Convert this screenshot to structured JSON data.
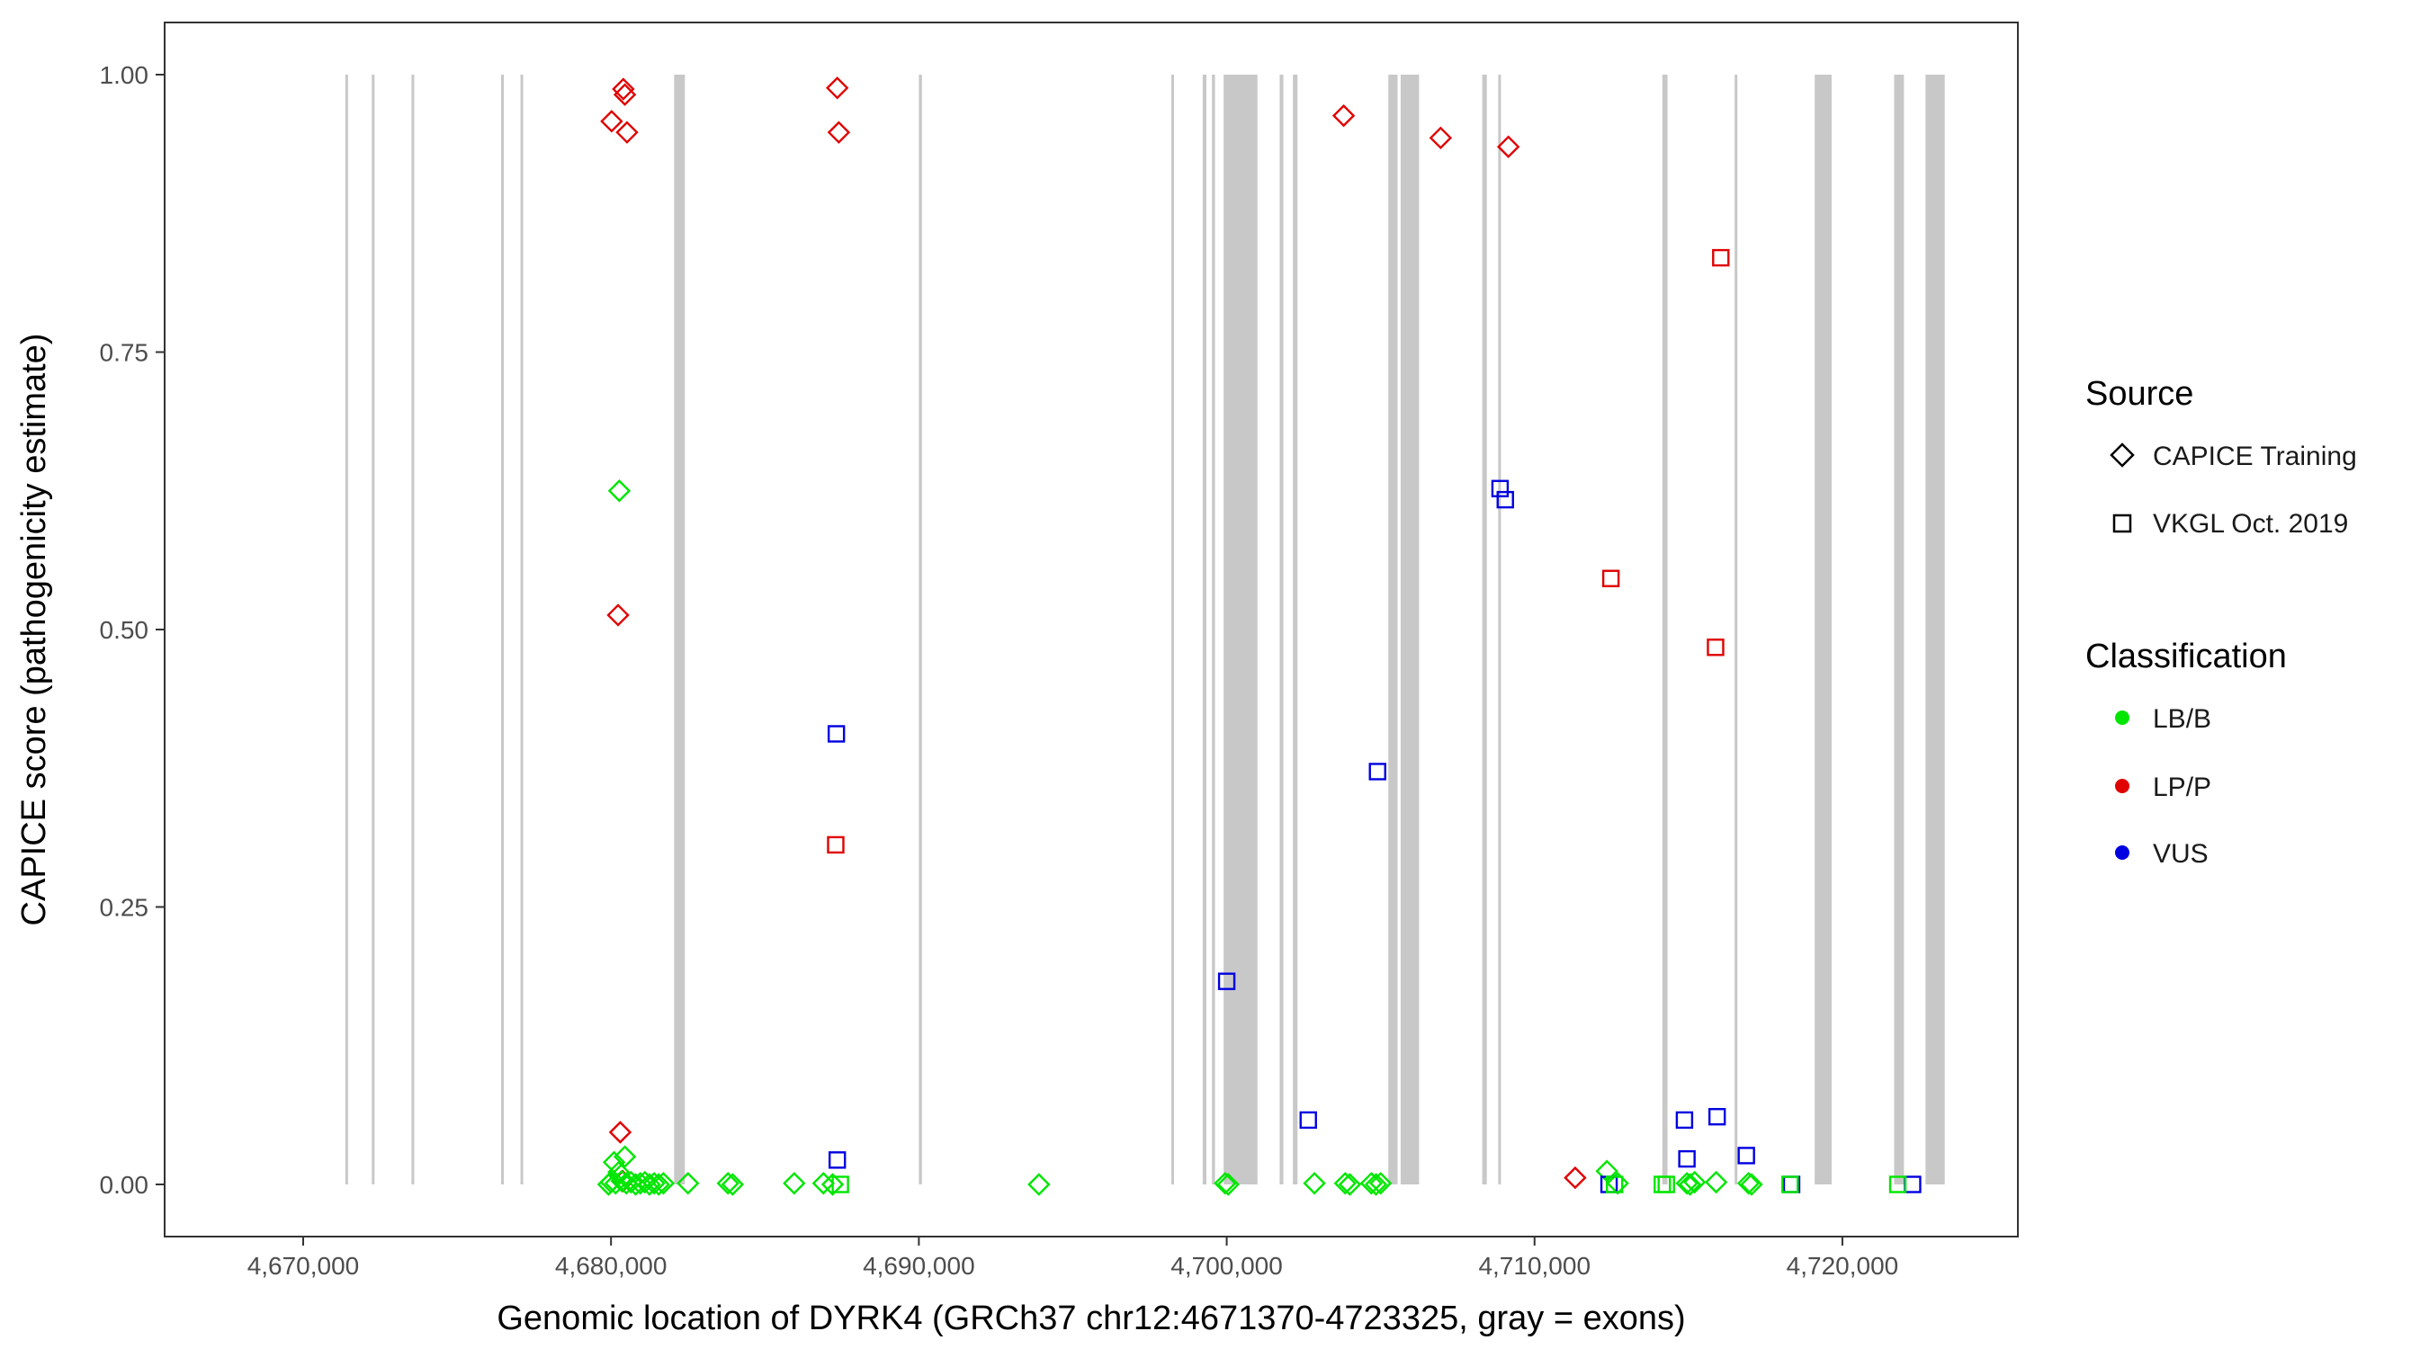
{
  "chart_data": {
    "type": "scatter",
    "title": "",
    "xlabel": "Genomic location of DYRK4 (GRCh37 chr12:4671370-4723325, gray = exons)",
    "ylabel": "CAPICE score (pathogenicity estimate)",
    "xlim": [
      4665500,
      4725700
    ],
    "ylim": [
      -0.047,
      1.047
    ],
    "x_ticks": [
      4670000,
      4680000,
      4690000,
      4700000,
      4710000,
      4720000
    ],
    "x_tick_labels": [
      "4,670,000",
      "4,680,000",
      "4,690,000",
      "4,700,000",
      "4,710,000",
      "4,720,000"
    ],
    "y_ticks": [
      0,
      0.25,
      0.5,
      0.75,
      1.0
    ],
    "y_tick_labels": [
      "0.00",
      "0.25",
      "0.50",
      "0.75",
      "1.00"
    ],
    "grid": false,
    "legend_position": "right",
    "exons": [
      [
        4671370,
        4671450
      ],
      [
        4672230,
        4672300
      ],
      [
        4673520,
        4673600
      ],
      [
        4676430,
        4676510
      ],
      [
        4677060,
        4677140
      ],
      [
        4682050,
        4682400
      ],
      [
        4690000,
        4690100
      ],
      [
        4698200,
        4698280
      ],
      [
        4699220,
        4699340
      ],
      [
        4699520,
        4699620
      ],
      [
        4699900,
        4701000
      ],
      [
        4701720,
        4701840
      ],
      [
        4702150,
        4702300
      ],
      [
        4705250,
        4705550
      ],
      [
        4705650,
        4706250
      ],
      [
        4708300,
        4708450
      ],
      [
        4708820,
        4708900
      ],
      [
        4714150,
        4714320
      ],
      [
        4716500,
        4716580
      ],
      [
        4719100,
        4719650
      ],
      [
        4721680,
        4722000
      ],
      [
        4722700,
        4723325
      ]
    ],
    "legend": {
      "source_title": "Source",
      "source_items": [
        {
          "label": "CAPICE Training",
          "shape": "diamond"
        },
        {
          "label": "VKGL Oct. 2019",
          "shape": "square"
        }
      ],
      "class_title": "Classification",
      "class_items": [
        {
          "label": "LB/B",
          "color": "#00e600"
        },
        {
          "label": "LP/P",
          "color": "#e00000"
        },
        {
          "label": "VUS",
          "color": "#0000e0"
        }
      ]
    },
    "series": [
      {
        "source": "CAPICE Training",
        "classification": "LP/P",
        "x": [
          4680020,
          4680230,
          4680400,
          4680450,
          4680520,
          4680300,
          4687350,
          4687400,
          4703800,
          4706950,
          4709150,
          4711320,
          4680380
        ],
        "y": [
          0.958,
          0.513,
          0.987,
          0.982,
          0.948,
          0.047,
          0.988,
          0.948,
          0.963,
          0.943,
          0.935,
          0.006,
          0.003
        ]
      },
      {
        "source": "CAPICE Training",
        "classification": "LB/B",
        "x": [
          4680270,
          4679920,
          4680000,
          4680150,
          4680350,
          4680500,
          4680650,
          4680800,
          4680950,
          4681100,
          4681250,
          4681400,
          4681550,
          4681700,
          4680450,
          4680100,
          4680250,
          4682500,
          4683800,
          4683950,
          4685950,
          4686900,
          4687200,
          4693900,
          4699950,
          4700050,
          4702850,
          4703850,
          4704000,
          4704700,
          4704850,
          4705000,
          4712350,
          4712700,
          4714950,
          4715050,
          4715200,
          4715900,
          4716950,
          4717050
        ],
        "y": [
          0.625,
          0.0,
          0.002,
          0.001,
          0.003,
          0.001,
          0.002,
          0.0,
          0.001,
          0.002,
          0.0,
          0.001,
          0.0,
          0.001,
          0.025,
          0.02,
          0.011,
          0.001,
          0.001,
          0.0,
          0.001,
          0.001,
          0.0,
          0.0,
          0.001,
          0.0,
          0.001,
          0.001,
          0.0,
          0.001,
          0.0,
          0.001,
          0.012,
          0.001,
          0.001,
          0.0,
          0.002,
          0.002,
          0.001,
          0.0
        ]
      },
      {
        "source": "VKGL Oct. 2019",
        "classification": "LP/P",
        "x": [
          4687300,
          4712480,
          4715880,
          4716050
        ],
        "y": [
          0.306,
          0.546,
          0.484,
          0.835
        ]
      },
      {
        "source": "VKGL Oct. 2019",
        "classification": "VUS",
        "x": [
          4687320,
          4687350,
          4700000,
          4702650,
          4704900,
          4708880,
          4709050,
          4712420,
          4714870,
          4714950,
          4715930,
          4716880,
          4718350,
          4722280
        ],
        "y": [
          0.406,
          0.022,
          0.183,
          0.058,
          0.372,
          0.627,
          0.617,
          0.0,
          0.058,
          0.023,
          0.061,
          0.026,
          0.0,
          0.0
        ]
      },
      {
        "source": "VKGL Oct. 2019",
        "classification": "LB/B",
        "x": [
          4687450,
          4712600,
          4714150,
          4714280,
          4721800,
          4718300
        ],
        "y": [
          0.0,
          0.0,
          0.0,
          0.0,
          0.0,
          0.0
        ]
      }
    ]
  }
}
